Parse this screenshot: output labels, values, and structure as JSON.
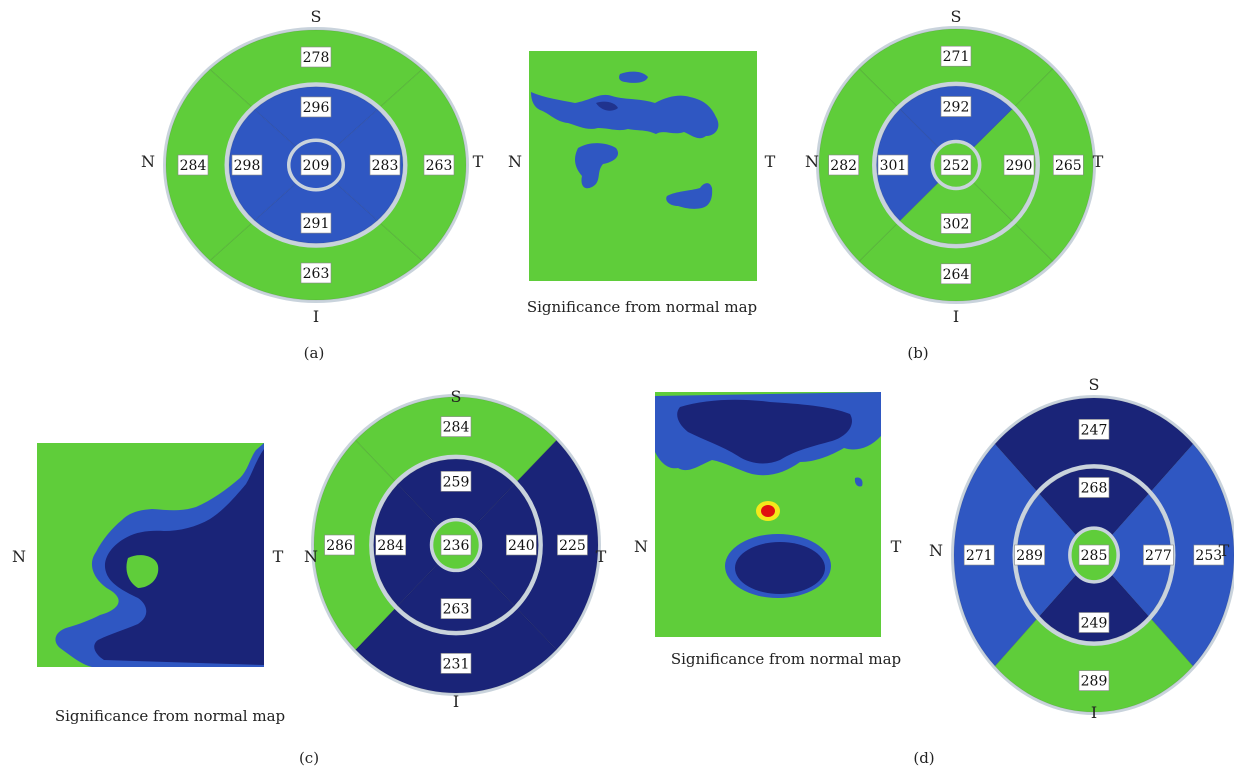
{
  "colors": {
    "normal": "#5fcd3a",
    "borderline": "#2f57c2",
    "abnormal": "#1a2478",
    "outside_normal_high": "#e01010",
    "yellow": "#f4e81b",
    "ring": "#c9d3dc"
  },
  "direction_labels": {
    "superior": "S",
    "inferior": "I",
    "nasal": "N",
    "temporal": "T"
  },
  "significance_caption": "Significance from normal map",
  "panels": [
    {
      "caption": "(a)",
      "etdrs": {
        "values": {
          "center": "209",
          "inner_s": "296",
          "inner_i": "291",
          "inner_n": "298",
          "inner_t": "283",
          "outer_s": "278",
          "outer_i": "263",
          "outer_n": "284",
          "outer_t": "263"
        },
        "colors": {
          "center": "borderline",
          "inner_s": "borderline",
          "inner_i": "borderline",
          "inner_n": "borderline",
          "inner_t": "borderline",
          "outer_s": "normal",
          "outer_i": "normal",
          "outer_n": "normal",
          "outer_t": "normal"
        }
      }
    },
    {
      "caption": "(b)",
      "etdrs": {
        "values": {
          "center": "252",
          "inner_s": "292",
          "inner_i": "302",
          "inner_n": "301",
          "inner_t": "290",
          "outer_s": "271",
          "outer_i": "264",
          "outer_n": "282",
          "outer_t": "265"
        },
        "colors": {
          "center": "normal",
          "inner_s": "borderline",
          "inner_i": "normal",
          "inner_n": "borderline",
          "inner_t": "normal",
          "outer_s": "normal",
          "outer_i": "normal",
          "outer_n": "normal",
          "outer_t": "normal"
        }
      }
    },
    {
      "caption": "(c)",
      "etdrs": {
        "values": {
          "center": "236",
          "inner_s": "259",
          "inner_i": "263",
          "inner_n": "284",
          "inner_t": "240",
          "outer_s": "284",
          "outer_i": "231",
          "outer_n": "286",
          "outer_t": "225"
        },
        "colors": {
          "center": "normal",
          "inner_s": "abnormal",
          "inner_i": "abnormal",
          "inner_n": "abnormal",
          "inner_t": "abnormal",
          "outer_s": "normal",
          "outer_i": "abnormal",
          "outer_n": "normal",
          "outer_t": "abnormal"
        }
      }
    },
    {
      "caption": "(d)",
      "etdrs": {
        "values": {
          "center": "285",
          "inner_s": "268",
          "inner_i": "249",
          "inner_n": "289",
          "inner_t": "277",
          "outer_s": "247",
          "outer_i": "289",
          "outer_n": "271",
          "outer_t": "253"
        },
        "colors": {
          "center": "normal",
          "inner_s": "abnormal",
          "inner_i": "abnormal",
          "inner_n": "borderline",
          "inner_t": "borderline",
          "outer_s": "abnormal",
          "outer_i": "normal",
          "outer_n": "borderline",
          "outer_t": "borderline"
        }
      }
    }
  ]
}
